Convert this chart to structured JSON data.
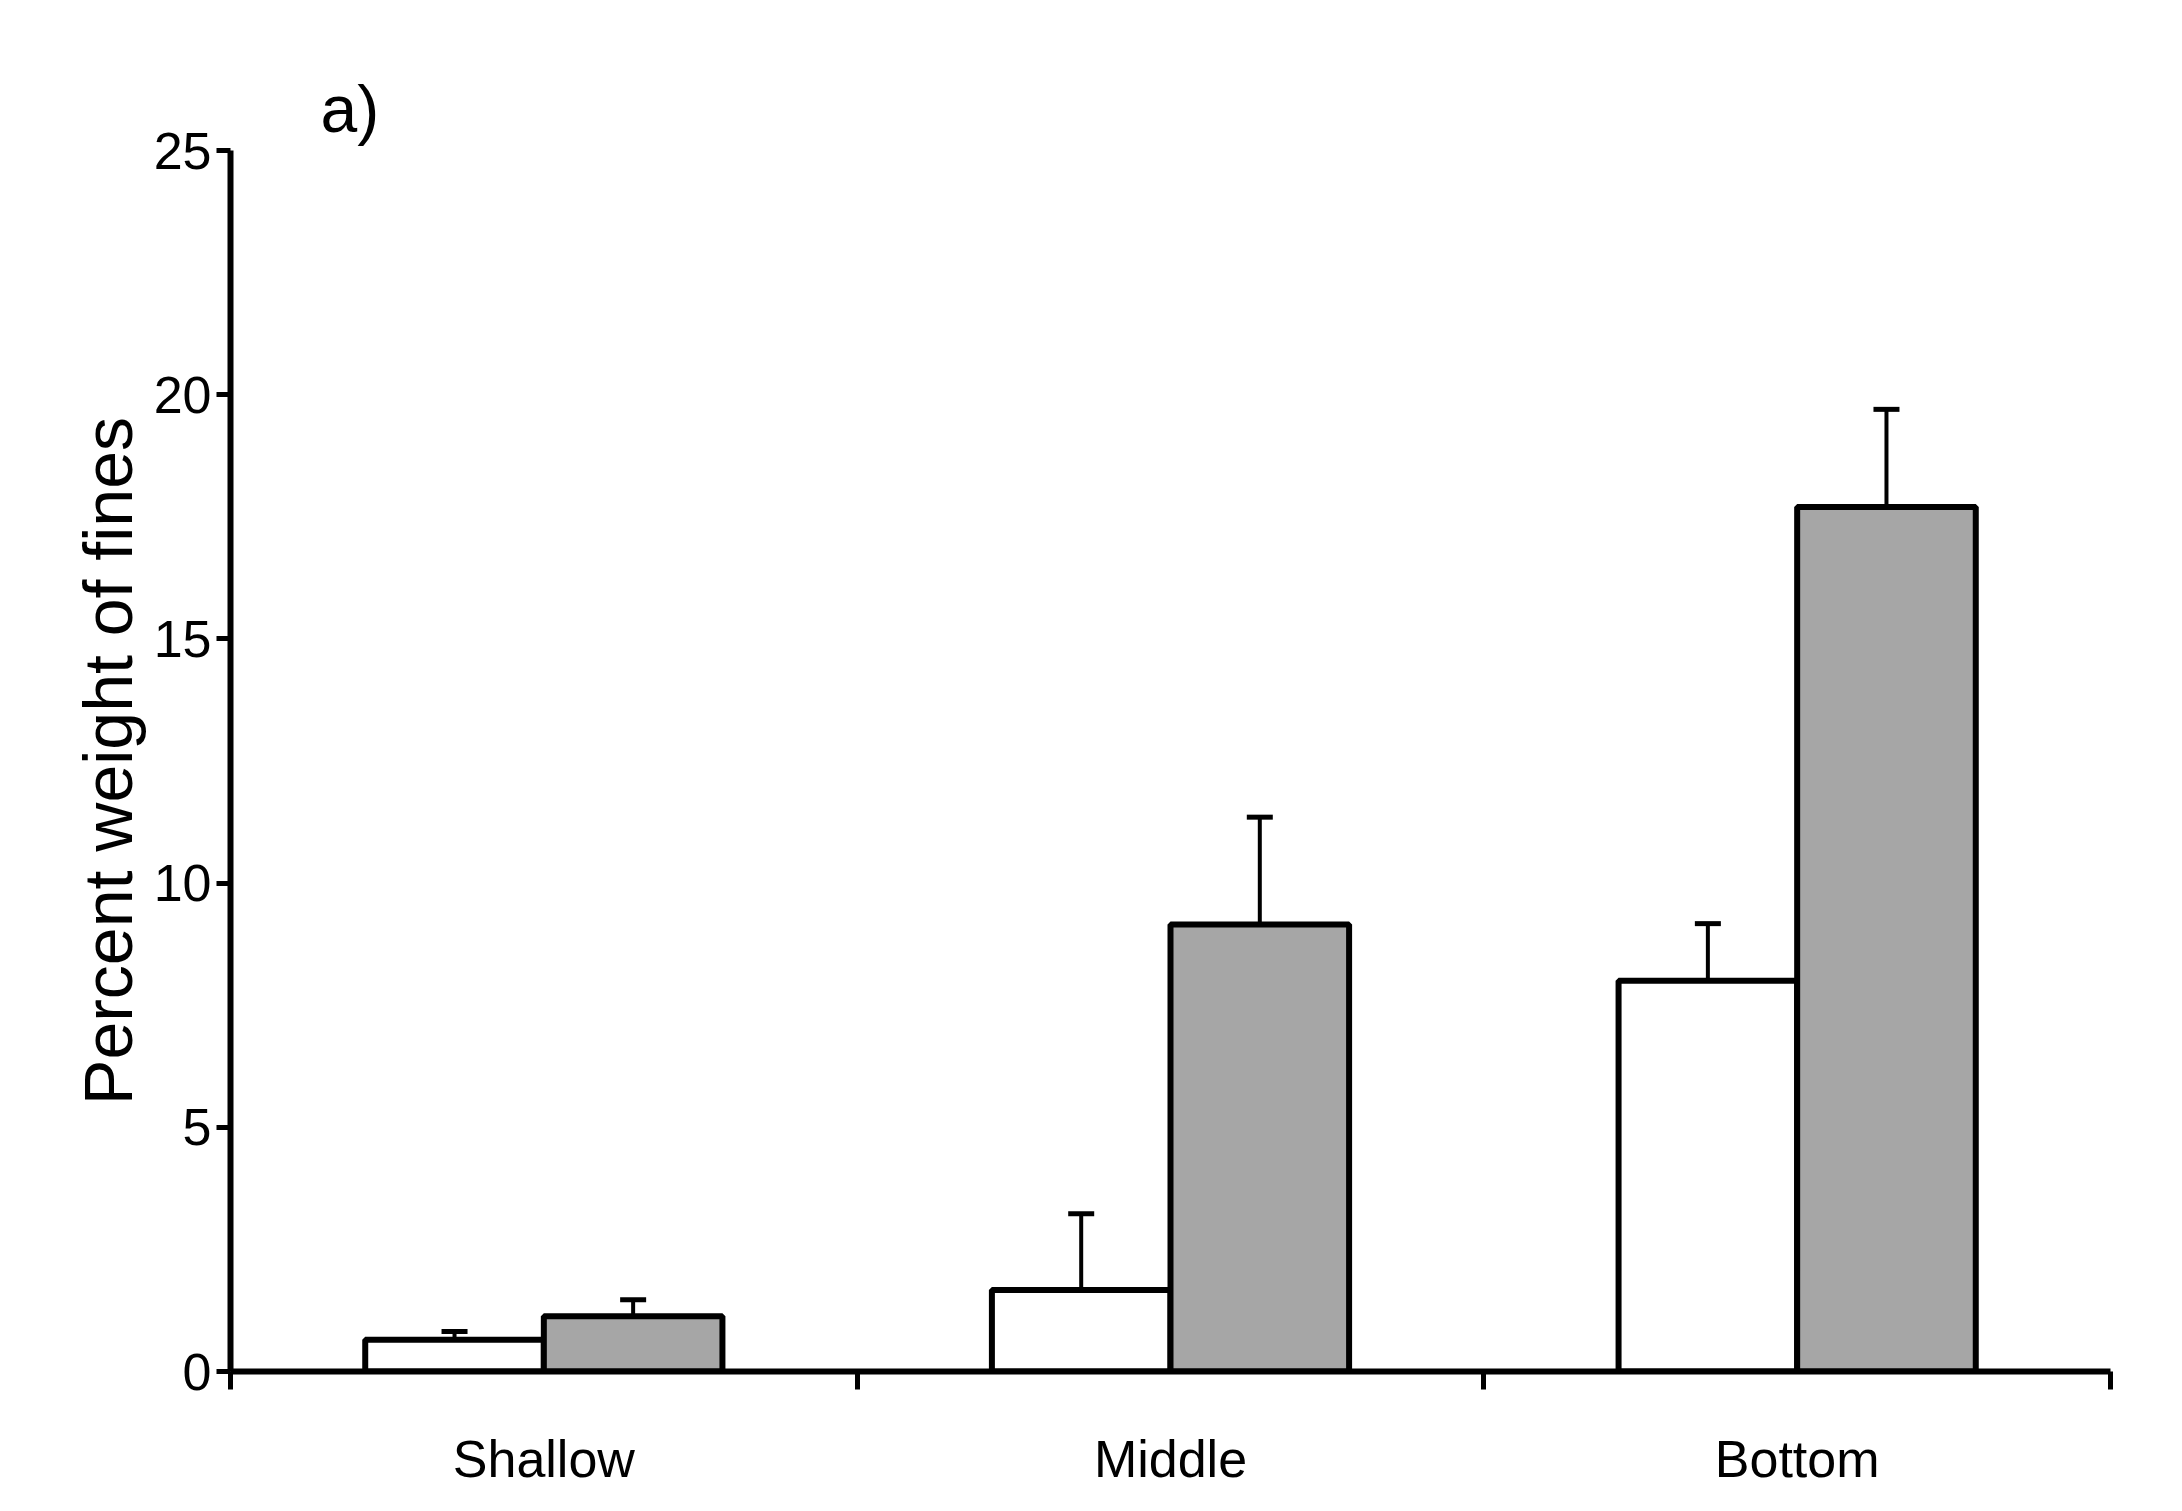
{
  "chart_data": {
    "type": "bar",
    "title": "a)",
    "ylabel": "Percent weight of fines",
    "categories": [
      "Shallow",
      "Middle",
      "Bottom"
    ],
    "series": [
      {
        "color": "#ffffff",
        "values": [
          0.65,
          1.67,
          8.0
        ],
        "errors": [
          [
            0.65,
            0.82
          ],
          [
            1.67,
            3.23
          ],
          [
            8.0,
            9.17
          ]
        ]
      },
      {
        "color": "#a6a6a6",
        "values": [
          1.13,
          9.15,
          17.7
        ],
        "errors": [
          [
            1.13,
            1.47
          ],
          [
            9.15,
            11.35
          ],
          [
            17.7,
            19.7
          ]
        ]
      }
    ],
    "ylim": [
      0,
      25
    ],
    "yticks": [
      0,
      5,
      10,
      15,
      20,
      25
    ]
  }
}
